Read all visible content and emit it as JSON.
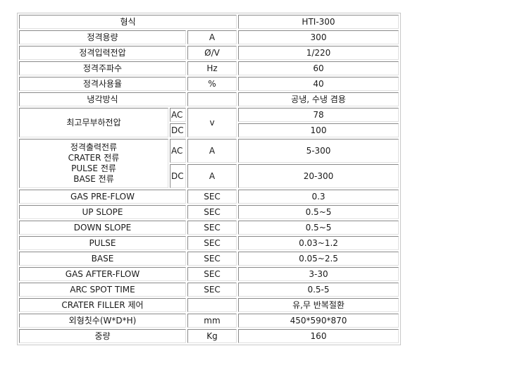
{
  "header": {
    "label": "형식",
    "value": "HTI-300"
  },
  "rows_top": [
    {
      "label": "정격용량",
      "unit": "A",
      "value": "300"
    },
    {
      "label": "정격입력전압",
      "unit": "Ø/V",
      "value": "1/220"
    },
    {
      "label": "정격주파수",
      "unit": "Hz",
      "value": "60"
    },
    {
      "label": "정격사용율",
      "unit": "%",
      "value": "40"
    },
    {
      "label": "냉각방식",
      "unit": "",
      "value": "공냉, 수냉 겸용"
    }
  ],
  "no_load_voltage": {
    "label": "최고무부하전압",
    "unit": "v",
    "rows": [
      {
        "mode": "AC",
        "value": "78"
      },
      {
        "mode": "DC",
        "value": "100"
      }
    ]
  },
  "output_current": {
    "label_lines": [
      "정격출력전류",
      "CRATER 전류",
      "PULSE 전류",
      "BASE 전류"
    ],
    "rows": [
      {
        "mode": "AC",
        "unit": "A",
        "value": "5-300"
      },
      {
        "mode": "DC",
        "unit": "A",
        "value": "20-300"
      }
    ]
  },
  "rows_bottom": [
    {
      "label": "GAS PRE-FLOW",
      "unit": "SEC",
      "value": "0.3"
    },
    {
      "label": "UP SLOPE",
      "unit": "SEC",
      "value": "0.5~5"
    },
    {
      "label": "DOWN SLOPE",
      "unit": "SEC",
      "value": "0.5~5"
    },
    {
      "label": "PULSE",
      "unit": "SEC",
      "value": "0.03~1.2"
    },
    {
      "label": "BASE",
      "unit": "SEC",
      "value": "0.05~2.5"
    },
    {
      "label": "GAS AFTER-FLOW",
      "unit": "SEC",
      "value": "3-30"
    },
    {
      "label": "ARC SPOT TIME",
      "unit": "SEC",
      "value": "0.5-5"
    },
    {
      "label": "CRATER FILLER 제어",
      "unit": "",
      "value": "유,무 반복절환"
    },
    {
      "label": "외형칫수(W*D*H)",
      "unit": "mm",
      "value": "450*590*870"
    },
    {
      "label": "중량",
      "unit": "Kg",
      "value": "160"
    }
  ]
}
